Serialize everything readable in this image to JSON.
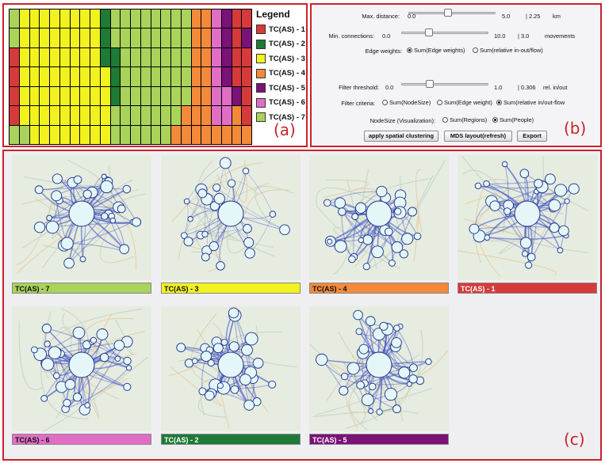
{
  "panel_tags": {
    "a": "(a)",
    "b": "(b)",
    "c": "(c)"
  },
  "legend": {
    "title": "Legend",
    "items": [
      {
        "label": "TC(AS) - 1",
        "color": "#d63a3a"
      },
      {
        "label": "TC(AS) - 2",
        "color": "#1e7a35"
      },
      {
        "label": "TC(AS) - 3",
        "color": "#f2f21e"
      },
      {
        "label": "TC(AS) - 4",
        "color": "#f28a3a"
      },
      {
        "label": "TC(AS) - 5",
        "color": "#7a1278"
      },
      {
        "label": "TC(AS) - 6",
        "color": "#e06ec4"
      },
      {
        "label": "TC(AS) - 7",
        "color": "#a9d35a"
      }
    ]
  },
  "heatmap": {
    "rows": 7,
    "cols": 24,
    "cells": [
      [
        7,
        3,
        3,
        3,
        3,
        3,
        3,
        3,
        3,
        2,
        7,
        7,
        7,
        7,
        7,
        7,
        7,
        7,
        4,
        4,
        6,
        5,
        1,
        1
      ],
      [
        7,
        3,
        3,
        3,
        3,
        3,
        3,
        3,
        3,
        2,
        7,
        7,
        7,
        7,
        7,
        7,
        7,
        7,
        4,
        4,
        6,
        5,
        1,
        5
      ],
      [
        1,
        3,
        3,
        3,
        3,
        3,
        3,
        3,
        3,
        2,
        2,
        7,
        7,
        7,
        7,
        7,
        7,
        7,
        4,
        4,
        6,
        5,
        1,
        1
      ],
      [
        1,
        3,
        3,
        3,
        3,
        3,
        3,
        3,
        3,
        3,
        2,
        7,
        7,
        7,
        7,
        7,
        7,
        7,
        4,
        4,
        6,
        5,
        1,
        1
      ],
      [
        1,
        3,
        3,
        3,
        3,
        3,
        3,
        3,
        3,
        3,
        2,
        7,
        7,
        7,
        7,
        7,
        7,
        7,
        4,
        4,
        6,
        6,
        5,
        1
      ],
      [
        1,
        3,
        3,
        3,
        3,
        3,
        3,
        3,
        3,
        3,
        7,
        7,
        7,
        7,
        7,
        7,
        7,
        4,
        4,
        4,
        6,
        6,
        4,
        1
      ],
      [
        7,
        7,
        3,
        3,
        3,
        3,
        3,
        3,
        3,
        3,
        7,
        7,
        7,
        7,
        7,
        7,
        4,
        4,
        4,
        4,
        4,
        4,
        4,
        4
      ]
    ]
  },
  "controls": {
    "max_distance": {
      "label": "Max. distance:",
      "min": "0.0",
      "max": "5.0",
      "value": "| 2.25",
      "unit": "km",
      "fraction": 0.45
    },
    "min_connections": {
      "label": "Min. connections:",
      "min": "0.0",
      "max": "10.0",
      "value": "| 3.0",
      "unit": "movements",
      "fraction": 0.3
    },
    "edge_weights": {
      "label": "Edge weights:",
      "options": [
        "Sum(Edge weights)",
        "Sum(relative in-out/flow)"
      ],
      "selected": 0
    },
    "filter_threshold": {
      "label": "Filter threshold:",
      "min": "0.0",
      "max": "1.0",
      "value": "| 0.306",
      "unit": "rel. in/out",
      "fraction": 0.306
    },
    "filter_criteria": {
      "label": "Filter criteria:",
      "options": [
        "Sum(NodeSize)",
        "Sum(Edge weight)",
        "Sum(relative in/out-flow"
      ],
      "selected": 2
    },
    "node_size": {
      "label": "NodeSize (Visualization):",
      "options": [
        "Sum(Regions)",
        "Sum(People)"
      ],
      "selected": 1
    },
    "buttons": {
      "cluster": "apply spatial clustering",
      "mds": "MDS layout(refresh)",
      "export": "Export"
    }
  },
  "networks": [
    {
      "label": "TC(AS) - 7",
      "color": "#a9d35a"
    },
    {
      "label": "TC(AS) - 3",
      "color": "#f2f21e"
    },
    {
      "label": "TC(AS) - 4",
      "color": "#f28a3a"
    },
    {
      "label": "TC(AS) - 1",
      "color": "#d63a3a"
    },
    {
      "label": "TC(AS) - 6",
      "color": "#e06ec4"
    },
    {
      "label": "TC(AS) - 2",
      "color": "#1e7a35"
    },
    {
      "label": "TC(AS) - 5",
      "color": "#7a1278"
    }
  ]
}
